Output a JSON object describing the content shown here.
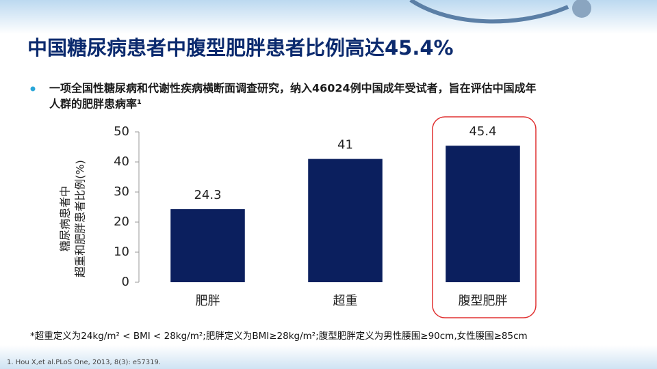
{
  "slide": {
    "title": "中国糖尿病患者中腹型肥胖患者比例高达45.4%",
    "bullet": [
      "一项全国性糖尿病和代谢性疾病横断面调查研究，纳入46024例中国成年受试者，旨在评估中国成年",
      "人群的肥胖患病率¹"
    ],
    "footnote": "*超重定义为24kg/m² < BMI < 28kg/m²;肥胖定义为BMI≥28kg/m²;腹型肥胖定义为男性腰围≥90cm,女性腰围≥85cm",
    "reference": "1. Hou X,et al.PLoS One, 2013, 8(3): e57319."
  },
  "chart_data": {
    "type": "bar",
    "ylabel": [
      "糖尿病患者中",
      "超重和肥胖患者比例(%)"
    ],
    "categories": [
      "肥胖",
      "超重",
      "腹型肥胖"
    ],
    "values": [
      24.3,
      41,
      45.4
    ],
    "color": "#0b1f5e",
    "ylim": [
      0,
      50
    ],
    "yticks": [
      0,
      10,
      20,
      30,
      40,
      50
    ],
    "grid": false
  }
}
